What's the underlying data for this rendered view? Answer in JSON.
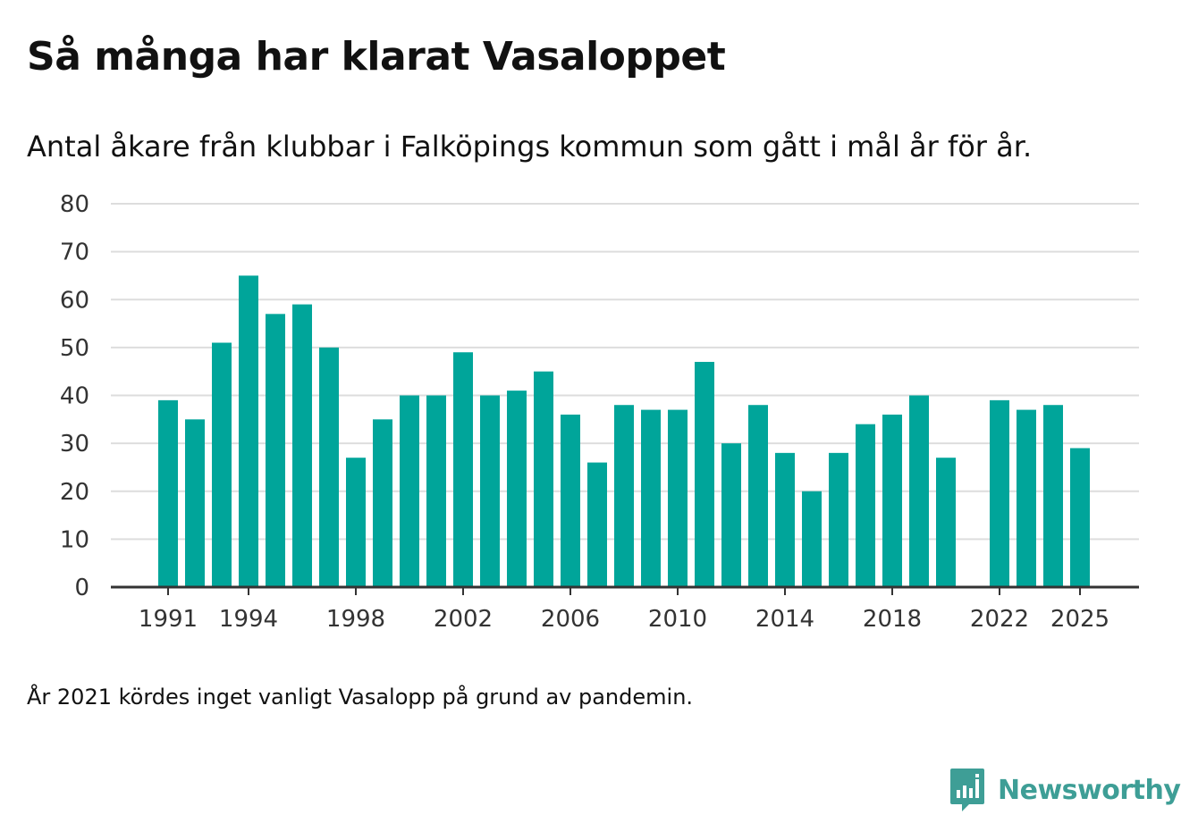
{
  "title": "Så många har klarat Vasaloppet",
  "subtitle": "Antal åkare från klubbar i Falköpings kommun som gått i mål år för år.",
  "note": "År 2021 kördes inget vanligt Vasalopp på grund av pandemin.",
  "brand": {
    "name": "Newsworthy",
    "color": "#3e9e96"
  },
  "colors": {
    "bar": "#00a59a",
    "grid": "#dddddd",
    "axis": "#333333",
    "text": "#333333"
  },
  "chart_data": {
    "type": "bar",
    "title": "Så många har klarat Vasaloppet",
    "xlabel": "",
    "ylabel": "",
    "ylim": [
      0,
      80
    ],
    "yticks": [
      0,
      10,
      20,
      30,
      40,
      50,
      60,
      70,
      80
    ],
    "xtick_labels": [
      "1991",
      "1994",
      "1998",
      "2002",
      "2006",
      "2010",
      "2014",
      "2018",
      "2022",
      "2025"
    ],
    "categories": [
      1991,
      1992,
      1993,
      1994,
      1995,
      1996,
      1997,
      1998,
      1999,
      2000,
      2001,
      2002,
      2003,
      2004,
      2005,
      2006,
      2007,
      2008,
      2009,
      2010,
      2011,
      2012,
      2013,
      2014,
      2015,
      2016,
      2017,
      2018,
      2019,
      2020,
      2021,
      2022,
      2023,
      2024,
      2025
    ],
    "values": [
      39,
      35,
      51,
      65,
      57,
      59,
      50,
      27,
      35,
      40,
      40,
      49,
      40,
      41,
      45,
      36,
      26,
      38,
      37,
      37,
      47,
      30,
      38,
      28,
      20,
      28,
      34,
      36,
      40,
      27,
      null,
      39,
      37,
      38,
      29
    ],
    "grid": true,
    "legend": "none"
  }
}
